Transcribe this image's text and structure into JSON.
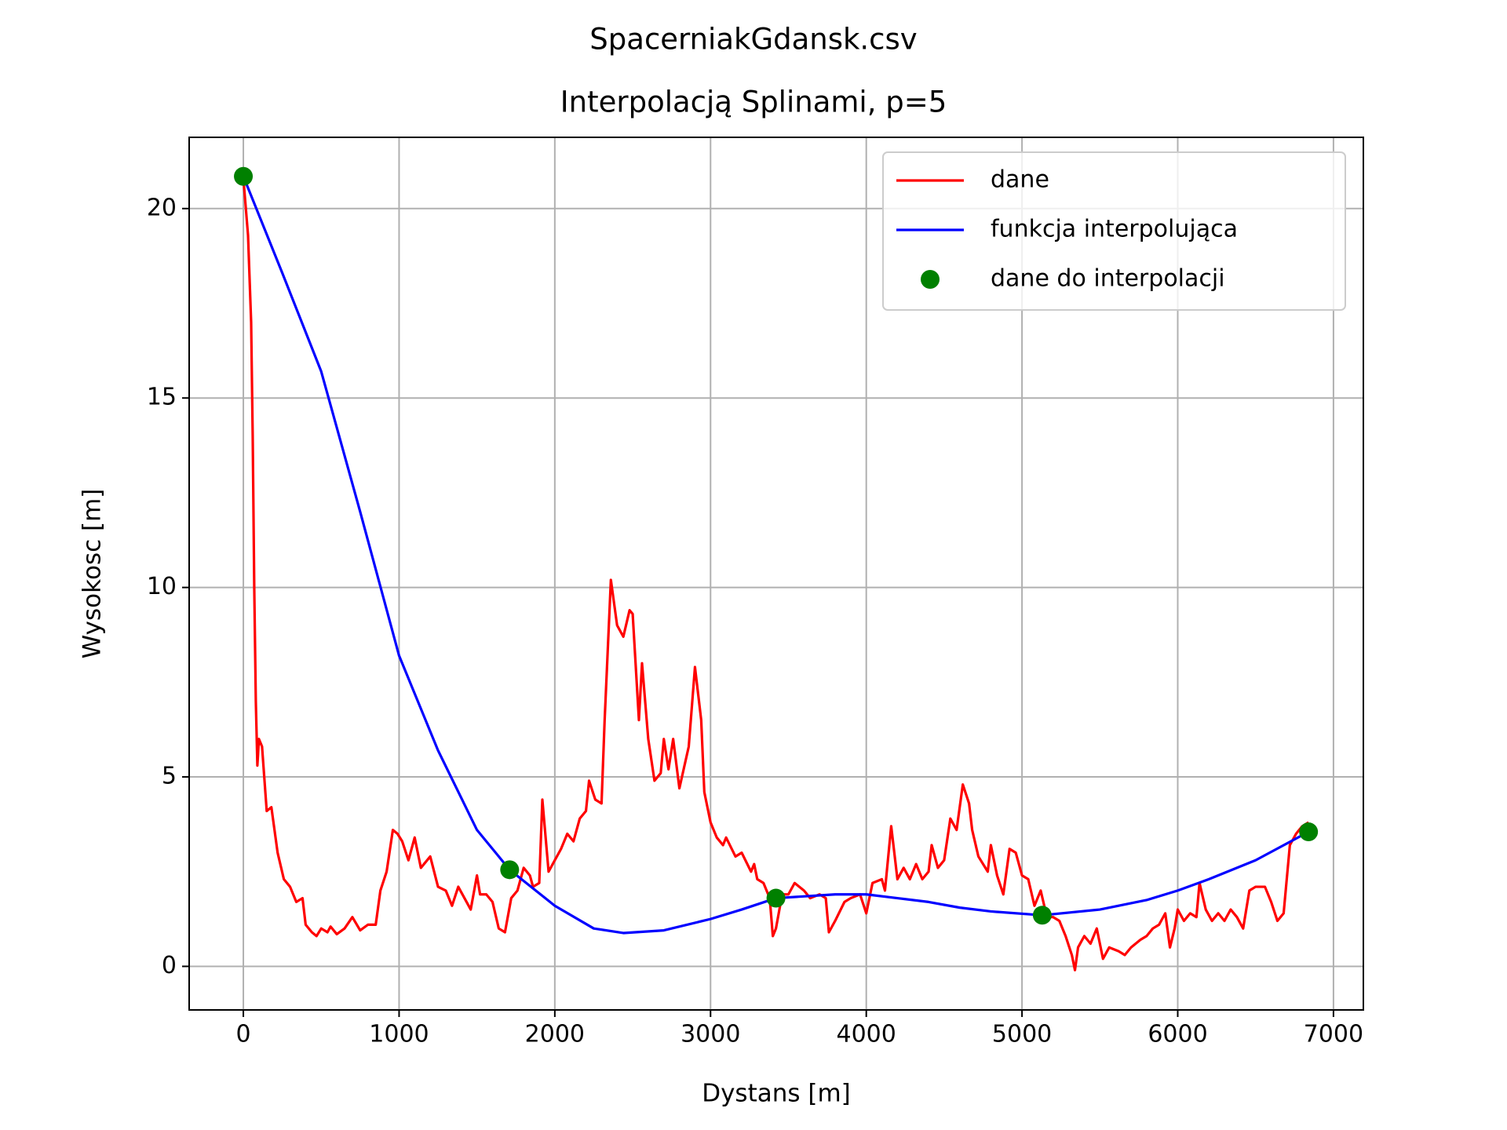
{
  "chart_data": {
    "type": "line",
    "suptitle": "SpacerniakGdansk.csv",
    "title": "Interpolacją Splinami, p=5",
    "x_label": "Dystans [m]",
    "y_label": "Wysokosc [m]",
    "xlim": [
      -348,
      7192
    ],
    "ylim": [
      -1.15,
      21.88
    ],
    "xticks": [
      0,
      1000,
      2000,
      3000,
      4000,
      5000,
      6000,
      7000
    ],
    "yticks": [
      0,
      5,
      10,
      15,
      20
    ],
    "grid": true,
    "legend": "upper right",
    "series": [
      {
        "name": "dane",
        "color": "#ff0000",
        "linestyle": "-",
        "x": [
          0,
          30,
          50,
          60,
          70,
          80,
          90,
          100,
          120,
          150,
          180,
          220,
          260,
          300,
          340,
          380,
          400,
          440,
          470,
          500,
          540,
          560,
          600,
          650,
          700,
          750,
          800,
          850,
          880,
          920,
          960,
          990,
          1020,
          1060,
          1100,
          1140,
          1200,
          1250,
          1300,
          1340,
          1380,
          1420,
          1460,
          1500,
          1520,
          1560,
          1600,
          1640,
          1680,
          1720,
          1760,
          1800,
          1840,
          1860,
          1900,
          1920,
          1960,
          2000,
          2040,
          2080,
          2120,
          2160,
          2200,
          2220,
          2260,
          2300,
          2320,
          2360,
          2400,
          2440,
          2480,
          2500,
          2540,
          2560,
          2600,
          2640,
          2680,
          2700,
          2730,
          2760,
          2800,
          2860,
          2900,
          2940,
          2960,
          3000,
          3040,
          3080,
          3100,
          3160,
          3200,
          3260,
          3280,
          3300,
          3340,
          3380,
          3400,
          3420,
          3460,
          3500,
          3540,
          3600,
          3640,
          3700,
          3740,
          3760,
          3800,
          3860,
          3900,
          3960,
          4000,
          4040,
          4100,
          4120,
          4160,
          4200,
          4240,
          4280,
          4320,
          4360,
          4400,
          4420,
          4460,
          4500,
          4540,
          4580,
          4620,
          4660,
          4680,
          4720,
          4780,
          4800,
          4840,
          4880,
          4920,
          4960,
          5000,
          5040,
          5080,
          5120,
          5160,
          5200,
          5240,
          5280,
          5320,
          5340,
          5360,
          5400,
          5440,
          5480,
          5520,
          5560,
          5620,
          5660,
          5700,
          5760,
          5800,
          5840,
          5880,
          5920,
          5950,
          5980,
          6000,
          6040,
          6080,
          6120,
          6140,
          6180,
          6220,
          6260,
          6300,
          6340,
          6380,
          6420,
          6460,
          6500,
          6560,
          6600,
          6640,
          6680,
          6720,
          6760,
          6800,
          6840
        ],
        "values": [
          20.8,
          19.3,
          17,
          14,
          10,
          7,
          5.3,
          6,
          5.8,
          4.1,
          4.2,
          3.0,
          2.3,
          2.1,
          1.7,
          1.8,
          1.1,
          0.9,
          0.8,
          1.0,
          0.9,
          1.05,
          0.85,
          1.0,
          1.3,
          0.95,
          1.1,
          1.1,
          2.0,
          2.5,
          3.6,
          3.5,
          3.3,
          2.8,
          3.4,
          2.6,
          2.9,
          2.1,
          2.0,
          1.6,
          2.1,
          1.8,
          1.5,
          2.4,
          1.9,
          1.9,
          1.7,
          1.0,
          0.9,
          1.8,
          2.0,
          2.6,
          2.4,
          2.1,
          2.2,
          4.4,
          2.5,
          2.8,
          3.1,
          3.5,
          3.3,
          3.9,
          4.1,
          4.9,
          4.4,
          4.3,
          6.5,
          10.2,
          9.0,
          8.7,
          9.4,
          9.3,
          6.5,
          8.0,
          6.0,
          4.9,
          5.1,
          6.0,
          5.2,
          6.0,
          4.7,
          5.8,
          7.9,
          6.5,
          4.6,
          3.8,
          3.4,
          3.2,
          3.4,
          2.9,
          3.0,
          2.5,
          2.7,
          2.3,
          2.2,
          1.8,
          0.8,
          1.0,
          1.9,
          1.9,
          2.2,
          2.0,
          1.8,
          1.9,
          1.8,
          0.9,
          1.2,
          1.7,
          1.8,
          1.9,
          1.4,
          2.2,
          2.3,
          2.0,
          3.7,
          2.3,
          2.6,
          2.3,
          2.7,
          2.3,
          2.5,
          3.2,
          2.6,
          2.8,
          3.9,
          3.6,
          4.8,
          4.3,
          3.6,
          2.9,
          2.5,
          3.2,
          2.4,
          1.9,
          3.1,
          3.0,
          2.4,
          2.3,
          1.6,
          2.0,
          1.3,
          1.3,
          1.2,
          0.8,
          0.3,
          -0.1,
          0.5,
          0.8,
          0.6,
          1.0,
          0.2,
          0.5,
          0.4,
          0.3,
          0.5,
          0.7,
          0.8,
          1.0,
          1.1,
          1.4,
          0.5,
          1.0,
          1.5,
          1.2,
          1.4,
          1.3,
          2.2,
          1.5,
          1.2,
          1.4,
          1.2,
          1.5,
          1.3,
          1.0,
          2.0,
          2.1,
          2.1,
          1.7,
          1.2,
          1.4,
          3.2,
          3.5,
          3.7,
          3.8
        ]
      },
      {
        "name": "funkcja interpolująca",
        "color": "#0000ff",
        "linestyle": "-",
        "x": [
          0,
          250,
          500,
          750,
          1000,
          1250,
          1500,
          1710,
          2000,
          2250,
          2440,
          2700,
          3000,
          3200,
          3420,
          3800,
          4000,
          4200,
          4400,
          4600,
          4800,
          5130,
          5500,
          5800,
          6000,
          6200,
          6500,
          6840
        ],
        "values": [
          20.85,
          18.3,
          15.7,
          12.0,
          8.2,
          5.7,
          3.6,
          2.55,
          1.6,
          1.0,
          0.88,
          0.95,
          1.25,
          1.5,
          1.8,
          1.9,
          1.9,
          1.8,
          1.7,
          1.55,
          1.45,
          1.35,
          1.5,
          1.75,
          2.0,
          2.3,
          2.8,
          3.55
        ]
      },
      {
        "name": "dane do interpolacji",
        "color": "#008000",
        "linestyle": "none",
        "marker": "o",
        "x": [
          0,
          1710,
          3420,
          5130,
          6840
        ],
        "values": [
          20.85,
          2.55,
          1.8,
          1.35,
          3.55
        ]
      }
    ]
  }
}
